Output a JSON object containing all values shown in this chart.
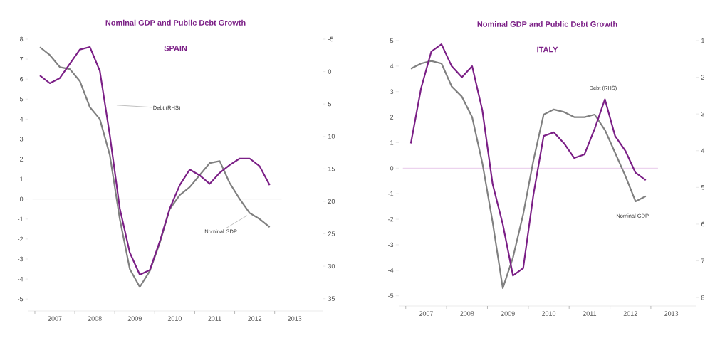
{
  "chart_data": [
    {
      "type": "line",
      "title": "Nominal GDP and Public Debt Growth",
      "subtitle": "SPAIN",
      "x": [
        2007.125,
        2007.375,
        2007.625,
        2007.875,
        2008.125,
        2008.375,
        2008.625,
        2008.875,
        2009.125,
        2009.375,
        2009.625,
        2009.875,
        2010.125,
        2010.375,
        2010.625,
        2010.875,
        2011.125,
        2011.375,
        2011.625,
        2011.875,
        2012.125,
        2012.375,
        2012.625,
        2012.875
      ],
      "series": [
        {
          "color": "#808080",
          "values": [
            7.6,
            7.2,
            6.6,
            6.5,
            5.9,
            4.6,
            4.0,
            2.2,
            -1.0,
            -3.5,
            -4.4,
            -3.6,
            -2.2,
            -0.5,
            0.2,
            0.6,
            1.2,
            1.8,
            1.9,
            0.8,
            0.0,
            -0.7,
            -1.0,
            -1.4
          ]
        },
        {
          "color": "#7b1f86",
          "axis": "y2",
          "values": [
            0.6,
            1.8,
            1.0,
            -1.2,
            -3.4,
            -3.8,
            -0.1,
            9.8,
            21.1,
            27.9,
            31.3,
            30.6,
            26.2,
            21.1,
            17.5,
            15.1,
            16.0,
            17.3,
            15.6,
            14.4,
            13.4,
            13.4,
            14.6,
            17.5
          ]
        }
      ],
      "xlim": [
        2006.84,
        2014.2
      ],
      "xticks": [
        {
          "value": 2007,
          "label": null
        },
        {
          "value": 2007.5,
          "label": "2007"
        },
        {
          "value": 2008,
          "label": null
        },
        {
          "value": 2008.5,
          "label": "2008"
        },
        {
          "value": 2009,
          "label": null
        },
        {
          "value": 2009.5,
          "label": "2009"
        },
        {
          "value": 2010,
          "label": null
        },
        {
          "value": 2010.5,
          "label": "2010"
        },
        {
          "value": 2011,
          "label": null
        },
        {
          "value": 2011.5,
          "label": "2011"
        },
        {
          "value": 2012,
          "label": null
        },
        {
          "value": 2012.5,
          "label": "2012"
        },
        {
          "value": 2013,
          "label": null
        },
        {
          "value": 2013.5,
          "label": "2013"
        }
      ],
      "ylim": [
        -5.6,
        8
      ],
      "yticks": [
        -5,
        -4,
        -3,
        -2,
        -1,
        0,
        1,
        2,
        3,
        4,
        5,
        6,
        7,
        8
      ],
      "y2lim": [
        36.9,
        -5
      ],
      "y2ticks": [
        -5,
        0,
        5,
        10,
        15,
        20,
        25,
        30,
        35
      ],
      "ref_lines": [
        {
          "axis": "y",
          "value": 0,
          "color": "#cccccc"
        }
      ],
      "annotations": [
        "Debt (RHS)",
        "Nominal GDP"
      ]
    },
    {
      "type": "line",
      "title": "Nominal GDP and Public Debt Growth",
      "subtitle": "ITALY",
      "x": [
        2007.125,
        2007.375,
        2007.625,
        2007.875,
        2008.125,
        2008.375,
        2008.625,
        2008.875,
        2009.125,
        2009.375,
        2009.625,
        2009.875,
        2010.125,
        2010.375,
        2010.625,
        2010.875,
        2011.125,
        2011.375,
        2011.625,
        2011.875,
        2012.125,
        2012.375,
        2012.625,
        2012.875
      ],
      "series": [
        {
          "color": "#808080",
          "values": [
            3.9,
            4.1,
            4.2,
            4.1,
            3.2,
            2.8,
            2.0,
            0.2,
            -2.1,
            -4.7,
            -3.5,
            -1.8,
            0.3,
            2.1,
            2.3,
            2.2,
            2.0,
            2.0,
            2.1,
            1.5,
            0.6,
            -0.3,
            -1.3,
            -1.1
          ]
        },
        {
          "color": "#7b1f86",
          "axis": "y2",
          "values": [
            3.8,
            2.3,
            1.3,
            1.1,
            1.7,
            2.0,
            1.7,
            2.9,
            4.9,
            6.0,
            7.4,
            7.2,
            5.2,
            3.6,
            3.5,
            3.8,
            4.2,
            4.1,
            3.4,
            2.6,
            3.6,
            4.0,
            4.6,
            4.8
          ]
        }
      ],
      "xlim": [
        2006.83,
        2014.1
      ],
      "xticks": [
        {
          "value": 2007,
          "label": null
        },
        {
          "value": 2007.5,
          "label": "2007"
        },
        {
          "value": 2008,
          "label": null
        },
        {
          "value": 2008.5,
          "label": "2008"
        },
        {
          "value": 2009,
          "label": null
        },
        {
          "value": 2009.5,
          "label": "2009"
        },
        {
          "value": 2010,
          "label": null
        },
        {
          "value": 2010.5,
          "label": "2010"
        },
        {
          "value": 2011,
          "label": null
        },
        {
          "value": 2011.5,
          "label": "2011"
        },
        {
          "value": 2012,
          "label": null
        },
        {
          "value": 2012.5,
          "label": "2012"
        },
        {
          "value": 2013,
          "label": null
        },
        {
          "value": 2013.5,
          "label": "2013"
        }
      ],
      "ylim": [
        -5.4,
        5
      ],
      "yticks": [
        -5,
        -4,
        -3,
        -2,
        -1,
        0,
        1,
        2,
        3,
        4,
        5
      ],
      "y2lim": [
        8.23,
        1
      ],
      "y2ticks": [
        1,
        2,
        3,
        4,
        5,
        6,
        7,
        8
      ],
      "ref_lines": [
        {
          "axis": "y",
          "value": 0,
          "color": "#d9a6dd"
        }
      ],
      "annotations": [
        "Debt (RHS)",
        "Nominal GDP"
      ]
    }
  ]
}
